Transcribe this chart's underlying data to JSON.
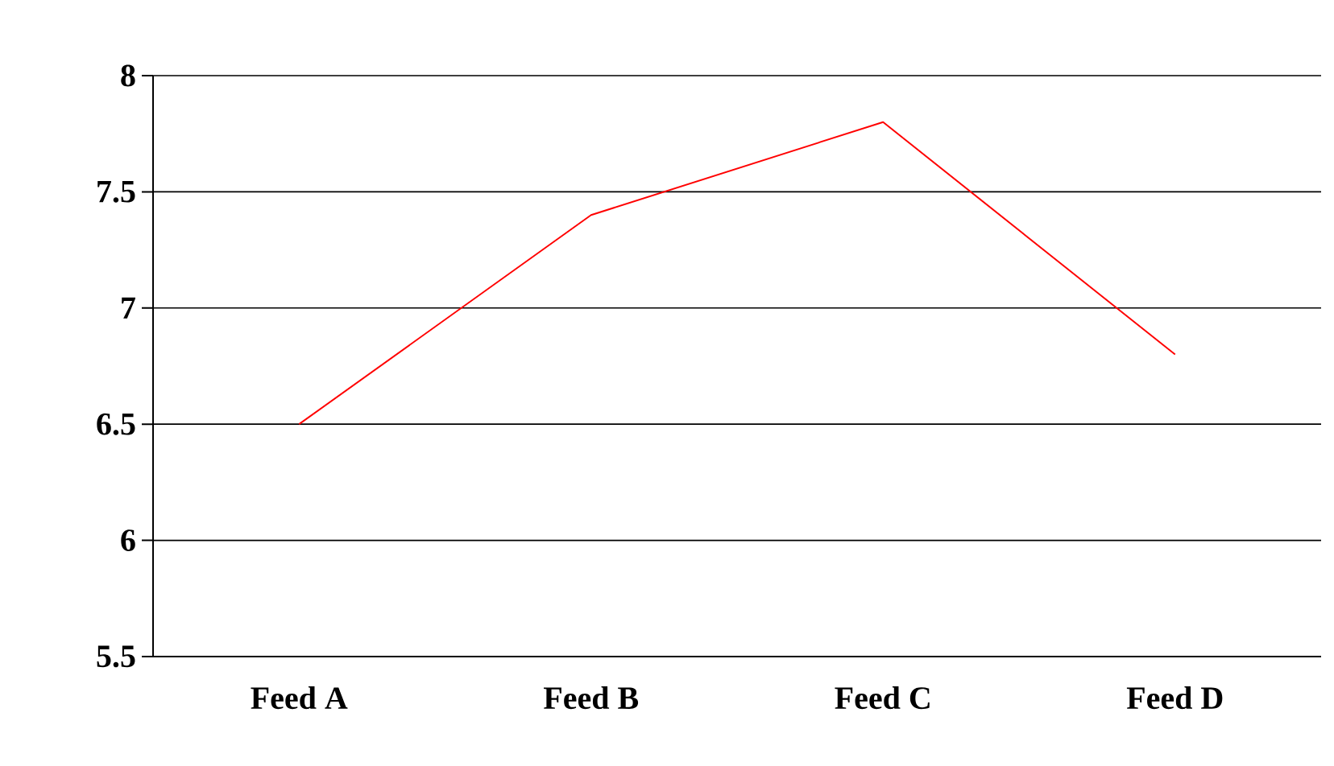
{
  "chart_data": {
    "type": "line",
    "categories": [
      "Feed A",
      "Feed B",
      "Feed C",
      "Feed D"
    ],
    "series": [
      {
        "color": "#ff0000",
        "values": [
          6.5,
          7.4,
          7.8,
          6.8
        ]
      }
    ],
    "ylim": [
      5.5,
      8
    ],
    "yticks": [
      5.5,
      6,
      6.5,
      7,
      7.5,
      8
    ],
    "grid": "y"
  }
}
